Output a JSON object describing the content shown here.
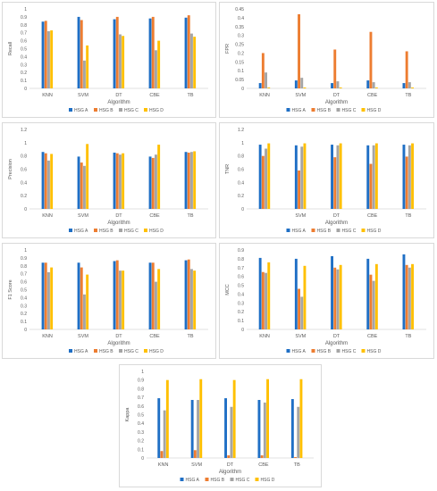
{
  "series_colors": {
    "HSG A": "#1f6fc5",
    "HSG B": "#ed7d31",
    "HSG C": "#a5a5a5",
    "HSG D": "#ffc000"
  },
  "chart_data": [
    {
      "type": "bar",
      "xlabel": "Algorithm",
      "ylabel": "Recall",
      "ylim": [
        0,
        1
      ],
      "yticks": [
        "0",
        "0.1",
        "0.2",
        "0.3",
        "0.4",
        "0.5",
        "0.6",
        "0.7",
        "0.8",
        "0.9",
        "1"
      ],
      "categories": [
        "KNN",
        "SVM",
        "DT",
        "CBE",
        "TB"
      ],
      "series": [
        {
          "name": "HSG A",
          "values": [
            0.84,
            0.9,
            0.87,
            0.88,
            0.89
          ]
        },
        {
          "name": "HSG B",
          "values": [
            0.85,
            0.86,
            0.9,
            0.9,
            0.92
          ]
        },
        {
          "name": "HSG C",
          "values": [
            0.72,
            0.35,
            0.68,
            0.48,
            0.69
          ]
        },
        {
          "name": "HSG D",
          "values": [
            0.73,
            0.54,
            0.66,
            0.6,
            0.65
          ]
        }
      ]
    },
    {
      "type": "bar",
      "xlabel": "Algorithm",
      "ylabel": "FPR",
      "ylim": [
        0,
        0.45
      ],
      "yticks": [
        "0",
        "0.05",
        "0.1",
        "0.15",
        "0.2",
        "0.25",
        "0.3",
        "0.35",
        "0.4",
        "0.45"
      ],
      "categories": [
        "KNN",
        "SVM",
        "DT",
        "CBE",
        "TB"
      ],
      "series": [
        {
          "name": "HSG A",
          "values": [
            0.03,
            0.045,
            0.03,
            0.045,
            0.03
          ]
        },
        {
          "name": "HSG B",
          "values": [
            0.2,
            0.42,
            0.22,
            0.32,
            0.21
          ]
        },
        {
          "name": "HSG C",
          "values": [
            0.09,
            0.06,
            0.04,
            0.035,
            0.035
          ]
        },
        {
          "name": "HSG D",
          "values": [
            0.005,
            0.005,
            0.005,
            0.005,
            0.005
          ]
        }
      ]
    },
    {
      "type": "bar",
      "xlabel": "Algorithm",
      "ylabel": "Precision",
      "ylim": [
        0,
        1.2
      ],
      "yticks": [
        "0",
        "0.2",
        "0.4",
        "0.6",
        "0.8",
        "1",
        "1.2"
      ],
      "categories": [
        "KNN",
        "SVM",
        "DT",
        "CBE",
        "TB"
      ],
      "series": [
        {
          "name": "HSG A",
          "values": [
            0.86,
            0.79,
            0.85,
            0.79,
            0.86
          ]
        },
        {
          "name": "HSG B",
          "values": [
            0.84,
            0.7,
            0.84,
            0.77,
            0.85
          ]
        },
        {
          "name": "HSG C",
          "values": [
            0.73,
            0.65,
            0.82,
            0.82,
            0.86
          ]
        },
        {
          "name": "HSG D",
          "values": [
            0.83,
            0.98,
            0.84,
            0.97,
            0.87
          ]
        }
      ]
    },
    {
      "type": "bar",
      "xlabel": "Algorithm",
      "ylabel": "TNR",
      "ylim": [
        0,
        1.2
      ],
      "yticks": [
        "0",
        "0.2",
        "0.4",
        "0.6",
        "0.8",
        "1",
        "1.2"
      ],
      "categories": [
        "",
        "SVM",
        "DT",
        "CBE",
        "TB"
      ],
      "series": [
        {
          "name": "HSG A",
          "values": [
            0.97,
            0.96,
            0.97,
            0.96,
            0.97
          ]
        },
        {
          "name": "HSG B",
          "values": [
            0.8,
            0.58,
            0.78,
            0.68,
            0.79
          ]
        },
        {
          "name": "HSG C",
          "values": [
            0.91,
            0.94,
            0.96,
            0.96,
            0.96
          ]
        },
        {
          "name": "HSG D",
          "values": [
            0.99,
            0.99,
            0.99,
            0.99,
            0.99
          ]
        }
      ]
    },
    {
      "type": "bar",
      "xlabel": "Algorithm",
      "ylabel": "F1 Score",
      "ylim": [
        0,
        1
      ],
      "yticks": [
        "0",
        "0.1",
        "0.2",
        "0.3",
        "0.4",
        "0.5",
        "0.6",
        "0.7",
        "0.8",
        "0.9",
        "1"
      ],
      "categories": [
        "KNN",
        "SVM",
        "DT",
        "CBE",
        "TB"
      ],
      "series": [
        {
          "name": "HSG A",
          "values": [
            0.84,
            0.84,
            0.86,
            0.84,
            0.87
          ]
        },
        {
          "name": "HSG B",
          "values": [
            0.84,
            0.78,
            0.87,
            0.84,
            0.88
          ]
        },
        {
          "name": "HSG C",
          "values": [
            0.72,
            0.44,
            0.74,
            0.6,
            0.76
          ]
        },
        {
          "name": "HSG D",
          "values": [
            0.78,
            0.69,
            0.74,
            0.76,
            0.74
          ]
        }
      ]
    },
    {
      "type": "bar",
      "xlabel": "Algorithm",
      "ylabel": "MCC",
      "ylim": [
        0,
        0.9
      ],
      "yticks": [
        "0",
        "0.1",
        "0.2",
        "0.3",
        "0.4",
        "0.5",
        "0.6",
        "0.7",
        "0.8",
        "0.9"
      ],
      "categories": [
        "KNN",
        "SVM",
        "DT",
        "CBE",
        "TB"
      ],
      "series": [
        {
          "name": "HSG A",
          "values": [
            0.81,
            0.8,
            0.83,
            0.8,
            0.85
          ]
        },
        {
          "name": "HSG B",
          "values": [
            0.65,
            0.46,
            0.7,
            0.62,
            0.73
          ]
        },
        {
          "name": "HSG C",
          "values": [
            0.64,
            0.37,
            0.68,
            0.55,
            0.7
          ]
        },
        {
          "name": "HSG D",
          "values": [
            0.76,
            0.72,
            0.73,
            0.74,
            0.74
          ]
        }
      ]
    },
    {
      "type": "bar",
      "xlabel": "Algorithm",
      "ylabel": "Kappa",
      "ylim": [
        0,
        1
      ],
      "yticks": [
        "0",
        "0.1",
        "0.2",
        "0.3",
        "0.4",
        "0.5",
        "0.6",
        "0.7",
        "0.8",
        "0.9",
        "1"
      ],
      "categories": [
        "KNN",
        "SVM",
        "DT",
        "CBE",
        "TB"
      ],
      "series": [
        {
          "name": "HSG A",
          "values": [
            0.69,
            0.67,
            0.69,
            0.67,
            0.68
          ]
        },
        {
          "name": "HSG B",
          "values": [
            0.08,
            0.09,
            0.03,
            0.03,
            0.01
          ]
        },
        {
          "name": "HSG C",
          "values": [
            0.55,
            0.67,
            0.59,
            0.64,
            0.59
          ]
        },
        {
          "name": "HSG D",
          "values": [
            0.9,
            0.91,
            0.9,
            0.91,
            0.91
          ]
        }
      ]
    }
  ]
}
